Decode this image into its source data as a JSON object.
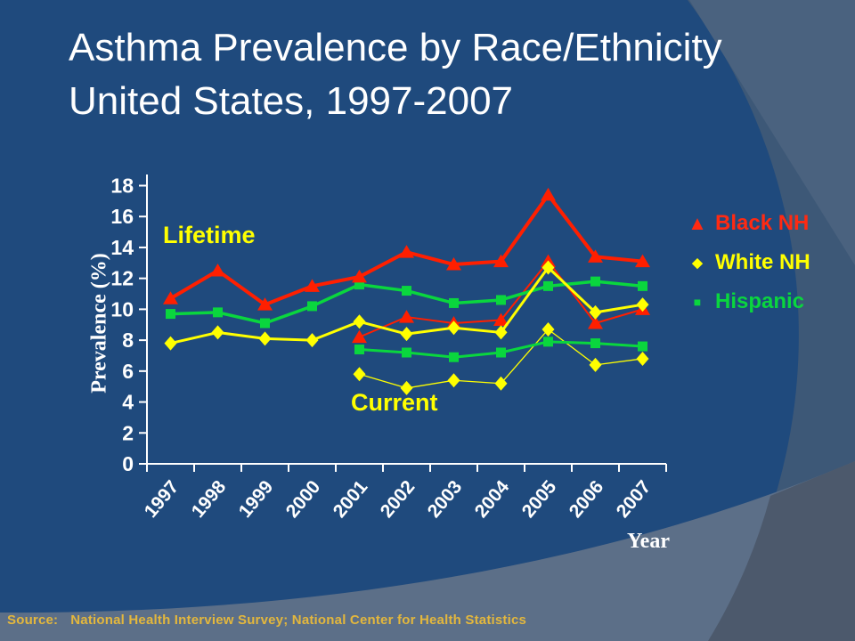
{
  "slide": {
    "title_line1": "Asthma Prevalence by Race/Ethnicity",
    "title_line2": "United States, 1997-2007",
    "source_label": "Source:",
    "source_text": "National Health Interview Survey; National Center for Health Statistics"
  },
  "colors": {
    "background": "#1F4A7D",
    "corner_circle": "#3D5877",
    "corner_highlight": "#4A627F",
    "bottom_band": "#5C6F88",
    "band_overlap": "#4C596C",
    "axis": "#FFFFFF",
    "red": "#FF1F00",
    "yellow": "#FFFF00",
    "green": "#0AD63E",
    "source_text_color": "#E3B73D"
  },
  "legend": {
    "items": [
      {
        "symbol": "▲",
        "label": "Black NH",
        "color": "#FF2A12"
      },
      {
        "symbol": "◆",
        "label": "White NH",
        "color": "#FFFF00"
      },
      {
        "symbol": "■",
        "label": "Hispanic",
        "color": "#0AD63E"
      }
    ]
  },
  "chart_data": {
    "type": "line",
    "x": [
      "1997",
      "1998",
      "1999",
      "2000",
      "2001",
      "2002",
      "2003",
      "2004",
      "2005",
      "2006",
      "2007"
    ],
    "xlabel": "Year",
    "ylabel": "Prevalence (%)",
    "ylim": [
      0,
      18
    ],
    "ytick_step": 2,
    "grid": false,
    "legend_position": "right",
    "annotations": [
      {
        "text": "Lifetime"
      },
      {
        "text": "Current"
      }
    ],
    "series": [
      {
        "name": "White NH Current",
        "group": "Current",
        "color": "#FFFF00",
        "marker": "diamond",
        "line_width": 1.3,
        "values": [
          null,
          null,
          null,
          null,
          5.8,
          4.9,
          5.4,
          5.2,
          8.7,
          6.4,
          6.8
        ]
      },
      {
        "name": "Hispanic Current",
        "group": "Current",
        "color": "#0AD63E",
        "marker": "square",
        "line_width": 3,
        "values": [
          null,
          null,
          null,
          null,
          7.4,
          7.2,
          6.9,
          7.2,
          7.9,
          7.8,
          7.6
        ]
      },
      {
        "name": "Black NH Current",
        "group": "Current",
        "color": "#FF1F00",
        "marker": "triangle",
        "line_width": 2,
        "values": [
          null,
          null,
          null,
          null,
          8.2,
          9.5,
          9.1,
          9.3,
          13.1,
          9.1,
          10.0
        ]
      },
      {
        "name": "Hispanic Lifetime",
        "group": "Lifetime",
        "color": "#0AD63E",
        "marker": "square",
        "line_width": 3.5,
        "values": [
          9.7,
          9.8,
          9.1,
          10.2,
          11.6,
          11.2,
          10.4,
          10.6,
          11.5,
          11.8,
          11.5
        ]
      },
      {
        "name": "Black NH Lifetime",
        "group": "Lifetime",
        "color": "#FF1F00",
        "marker": "triangle",
        "line_width": 4,
        "values": [
          10.7,
          12.5,
          10.3,
          11.5,
          12.1,
          13.7,
          12.9,
          13.1,
          17.4,
          13.4,
          13.1
        ]
      },
      {
        "name": "White NH Lifetime",
        "group": "Lifetime",
        "color": "#FFFF00",
        "marker": "diamond",
        "line_width": 3,
        "values": [
          7.8,
          8.5,
          8.1,
          8.0,
          9.2,
          8.4,
          8.8,
          8.5,
          12.7,
          9.8,
          10.3
        ]
      }
    ]
  }
}
